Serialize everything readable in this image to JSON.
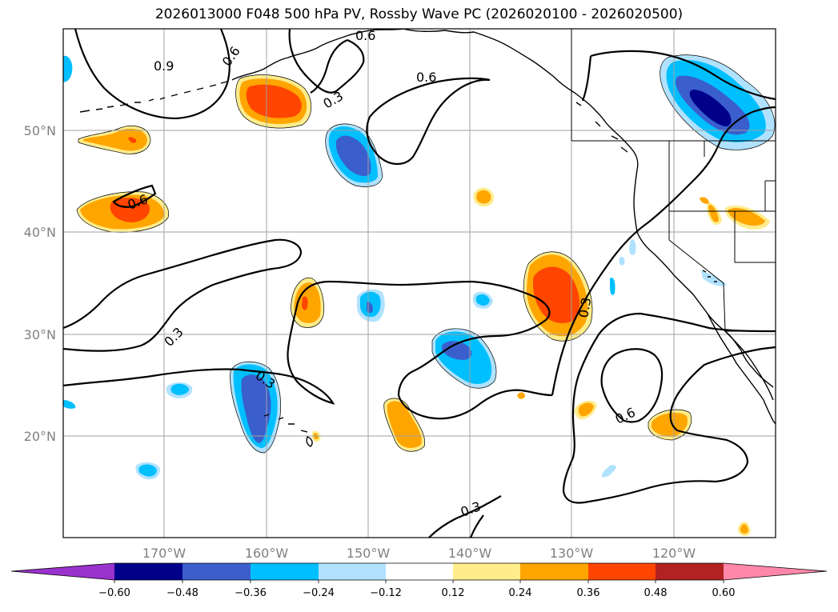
{
  "title": "2026013000 F048 500 hPa PV, Rossby Wave PC (2026020100 - 2026020500)",
  "map": {
    "lat_labels": [
      "50°N",
      "40°N",
      "30°N",
      "20°N"
    ],
    "lon_labels": [
      "170°W",
      "160°W",
      "150°W",
      "140°W",
      "130°W",
      "120°W"
    ],
    "contour_labels": [
      "0.9",
      "0.6",
      "0.6",
      "0.6",
      "0.3",
      "0.6",
      "0.3",
      "0.3",
      "0.3",
      "0.6",
      "0.3"
    ]
  },
  "colorbar": {
    "ticks": [
      "−0.60",
      "−0.48",
      "−0.36",
      "−0.24",
      "−0.12",
      "0.12",
      "0.24",
      "0.36",
      "0.48",
      "0.60"
    ],
    "colors": [
      "#9932cc",
      "#00008b",
      "#3a5fcd",
      "#00bfff",
      "#b0e2ff",
      "#ffffff",
      "#ffec8b",
      "#ffa500",
      "#ff4500",
      "#b22222",
      "#ff88aa"
    ]
  },
  "colors": {
    "dark_blue": "#00008b",
    "blue": "#3a5fcd",
    "cyan": "#00bfff",
    "light_blue": "#b0e2ff",
    "light_yellow": "#ffec8b",
    "orange": "#ffa500",
    "red_orange": "#ff4500"
  }
}
